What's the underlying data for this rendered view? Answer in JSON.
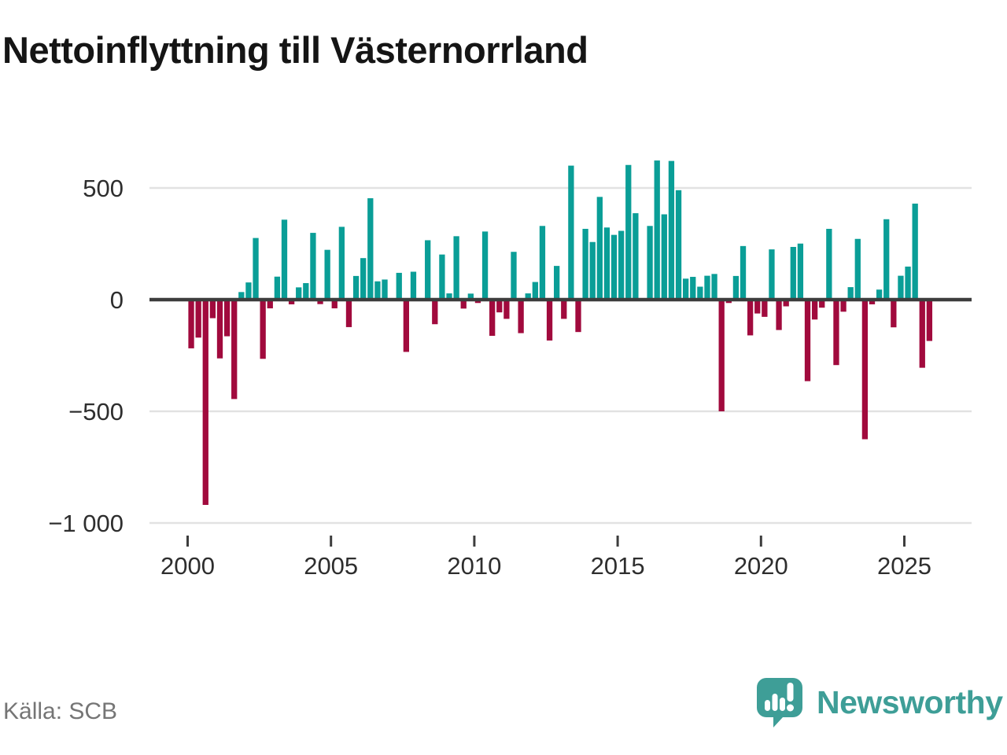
{
  "title": "Nettoinflyttning till Västernorrland",
  "source": "Källa: SCB",
  "brand": {
    "name": "Newsworthy",
    "icon": "bar-chart-speech-bubble-icon",
    "color": "#3e9e97"
  },
  "colors": {
    "positive_bar": "#0a9e97",
    "negative_bar": "#a10a3d",
    "zero_line": "#3d3d3d",
    "gridline": "#e2e2e2",
    "tick": "#3d3d3d",
    "axis_text": "#2e2e2e",
    "source_text": "#757575"
  },
  "chart_data": {
    "type": "bar",
    "title": "Nettoinflyttning till Västernorrland",
    "xlabel": "",
    "ylabel": "",
    "frequency": "quarterly",
    "start_year": 2000,
    "start_quarter": 1,
    "grid": "horizontal",
    "ylim": [
      -1050,
      660
    ],
    "y_ticks": [
      {
        "label": "500",
        "value": 500
      },
      {
        "label": "0",
        "value": 0
      },
      {
        "label": "−500",
        "value": -500
      },
      {
        "label": "−1 000",
        "value": -1000
      }
    ],
    "x_ticks": [
      {
        "label": "2000",
        "year": 2000
      },
      {
        "label": "2005",
        "year": 2005
      },
      {
        "label": "2010",
        "year": 2010
      },
      {
        "label": "2015",
        "year": 2015
      },
      {
        "label": "2020",
        "year": 2020
      },
      {
        "label": "2025",
        "year": 2025
      }
    ],
    "values": [
      -218,
      -170,
      -919,
      -83,
      -263,
      -164,
      -445,
      34,
      77,
      276,
      -265,
      -39,
      103,
      358,
      -21,
      55,
      74,
      299,
      -20,
      223,
      -39,
      326,
      -123,
      106,
      186,
      454,
      82,
      90,
      0,
      120,
      -234,
      125,
      0,
      266,
      -110,
      202,
      28,
      284,
      -40,
      27,
      -15,
      305,
      -162,
      -57,
      -86,
      214,
      -150,
      28,
      79,
      330,
      -183,
      151,
      -86,
      600,
      -145,
      317,
      258,
      460,
      323,
      290,
      308,
      603,
      387,
      0,
      330,
      623,
      382,
      621,
      490,
      94,
      102,
      58,
      107,
      115,
      -500,
      -15,
      106,
      240,
      -160,
      -62,
      -77,
      225,
      -136,
      -30,
      236,
      251,
      -365,
      -89,
      -36,
      317,
      -293,
      -54,
      56,
      272,
      -625,
      -21,
      45,
      360,
      -124,
      107,
      148,
      430,
      -305,
      -185
    ]
  }
}
